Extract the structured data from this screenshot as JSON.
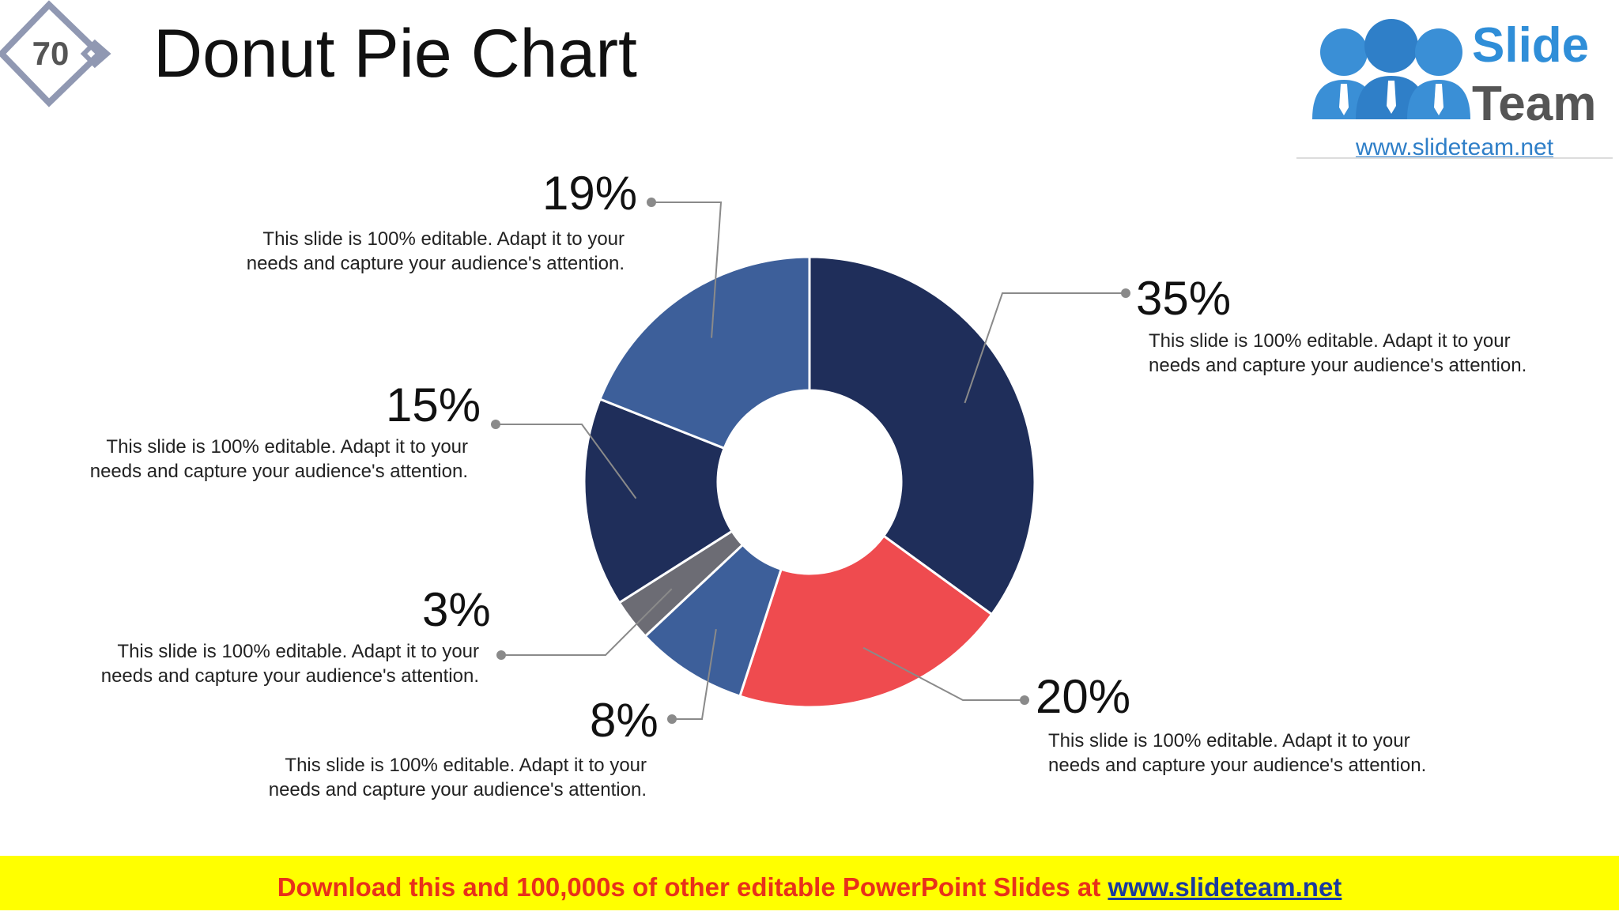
{
  "slide": {
    "number": "70",
    "title": "Donut Pie Chart"
  },
  "logo": {
    "word1": "Slide",
    "word2": "Team",
    "url": "www.slideteam.net"
  },
  "colors": {
    "dark_navy": "#1f2e5a",
    "medium_blue": "#3d5f9a",
    "red": "#ef4b4f",
    "gray": "#6c6c74",
    "footer_bg": "#ffff00",
    "footer_text": "#e8311a",
    "logo_blue": "#3a8fd6"
  },
  "chart_data": {
    "type": "pie",
    "donut": true,
    "slices": [
      {
        "value": 35,
        "label": "35%",
        "description": "This slide is 100% editable. Adapt it to your needs and capture your audience's attention.",
        "color": "#1f2e5a"
      },
      {
        "value": 20,
        "label": "20%",
        "description": "This slide is 100% editable. Adapt it to your needs and capture your audience's attention.",
        "color": "#ef4b4f"
      },
      {
        "value": 8,
        "label": "8%",
        "description": "This slide is 100% editable. Adapt it to your needs and capture your audience's attention.",
        "color": "#3d5f9a"
      },
      {
        "value": 3,
        "label": "3%",
        "description": "This slide is 100% editable. Adapt it to your needs and capture your audience's attention.",
        "color": "#6c6c74"
      },
      {
        "value": 15,
        "label": "15%",
        "description": "This slide is 100% editable. Adapt it to your needs and capture your audience's attention.",
        "color": "#1f2e5a"
      },
      {
        "value": 19,
        "label": "19%",
        "description": "This slide is 100% editable. Adapt it to your needs and capture your audience's attention.",
        "color": "#3d5f9a"
      }
    ]
  },
  "footer": {
    "text": "Download this and 100,000s of other editable PowerPoint Slides at ",
    "link": "www.slideteam.net"
  }
}
